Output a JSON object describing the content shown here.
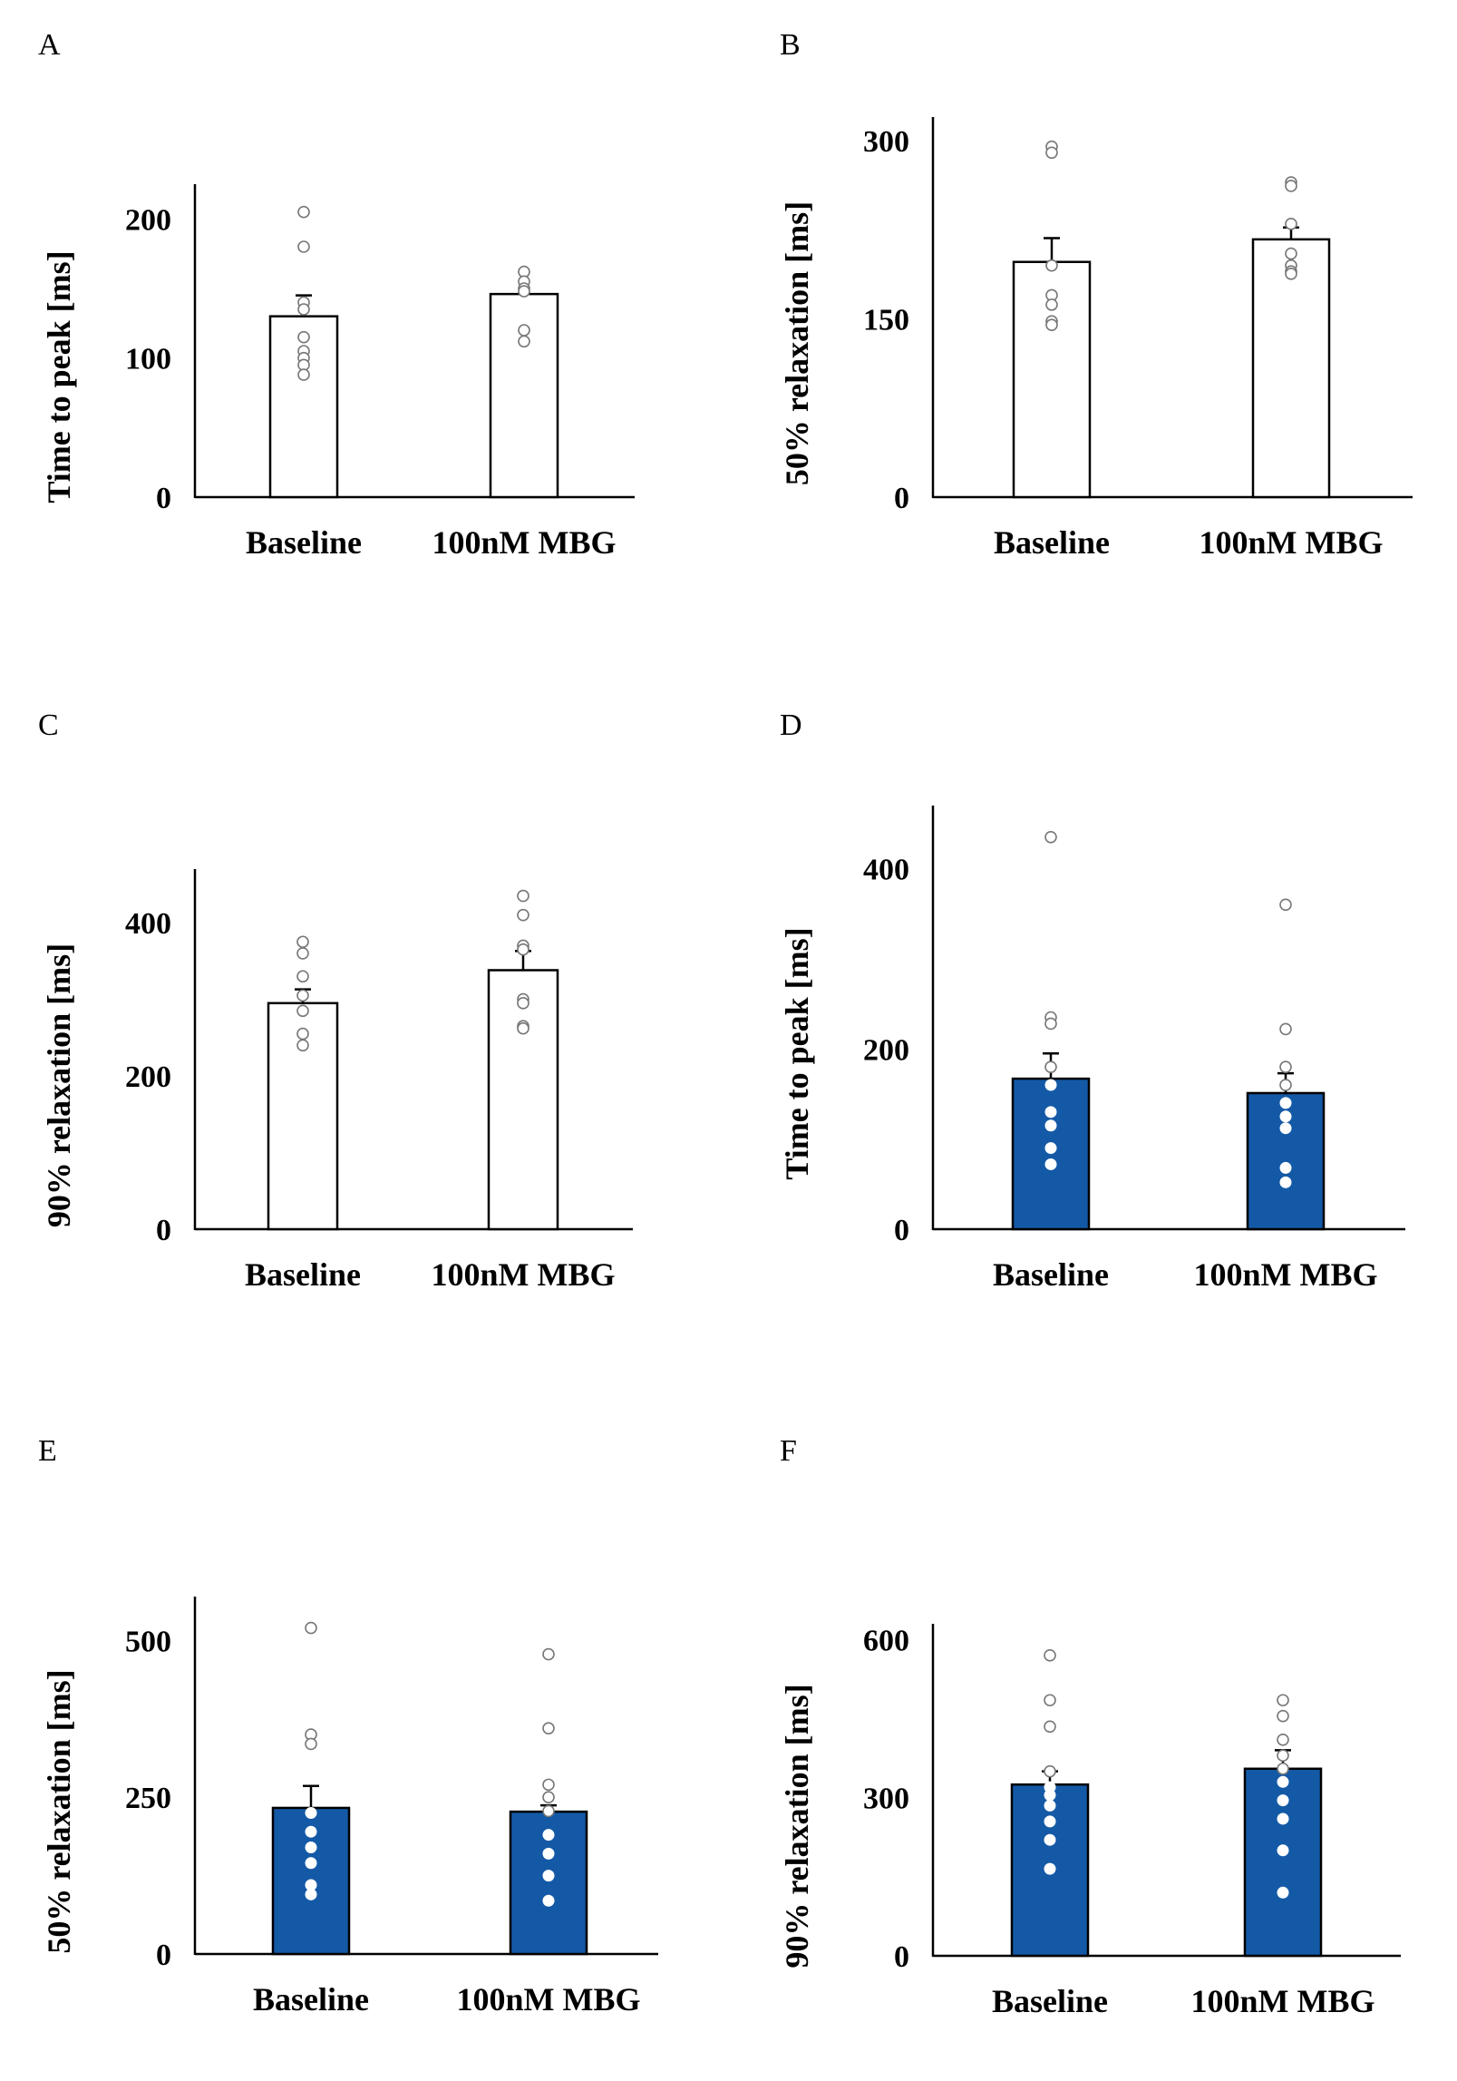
{
  "colors": {
    "white_bar": "#ffffff",
    "blue_bar": "#1459a6",
    "axis": "#000000"
  },
  "chart_data": [
    {
      "panel": "A",
      "type": "bar",
      "style": "white",
      "categories": [
        "Baseline",
        "100nM MBG"
      ],
      "values": [
        130,
        146
      ],
      "errors": [
        15,
        0
      ],
      "ylabel": "Time to peak [ms]",
      "ylim": [
        0,
        225
      ],
      "yticks": [
        0,
        100,
        200
      ],
      "points": [
        [
          205,
          180,
          140,
          135,
          115,
          105,
          100,
          95,
          88
        ],
        [
          162,
          155,
          150,
          148,
          120,
          112
        ]
      ]
    },
    {
      "panel": "B",
      "type": "bar",
      "style": "white",
      "categories": [
        "Baseline",
        "100nM MBG"
      ],
      "values": [
        198,
        217
      ],
      "errors": [
        20,
        10
      ],
      "ylabel": "50% relaxation [ms]",
      "ylim": [
        0,
        320
      ],
      "yticks": [
        0,
        150,
        300
      ],
      "points": [
        [
          295,
          290,
          195,
          170,
          162,
          148,
          145
        ],
        [
          265,
          262,
          230,
          205,
          195,
          190,
          188
        ]
      ]
    },
    {
      "panel": "C",
      "type": "bar",
      "style": "white",
      "categories": [
        "Baseline",
        "100nM MBG"
      ],
      "values": [
        295,
        338
      ],
      "errors": [
        18,
        25
      ],
      "ylabel": "90% relaxation [ms]",
      "ylim": [
        0,
        470
      ],
      "yticks": [
        0,
        200,
        400
      ],
      "points": [
        [
          375,
          360,
          330,
          305,
          285,
          255,
          240
        ],
        [
          435,
          410,
          370,
          365,
          300,
          295,
          265,
          262
        ]
      ]
    },
    {
      "panel": "D",
      "type": "bar",
      "style": "blue",
      "categories": [
        "Baseline",
        "100nM MBG"
      ],
      "values": [
        167,
        151
      ],
      "errors": [
        28,
        22
      ],
      "ylabel": "Time to peak [ms]",
      "ylim": [
        0,
        470
      ],
      "yticks": [
        0,
        200,
        400
      ],
      "points": [
        [
          435,
          235,
          228,
          180,
          160,
          130,
          115,
          90,
          72
        ],
        [
          360,
          222,
          180,
          160,
          140,
          125,
          112,
          68,
          52
        ]
      ]
    },
    {
      "panel": "E",
      "type": "bar",
      "style": "blue",
      "categories": [
        "Baseline",
        "100nM MBG"
      ],
      "values": [
        233,
        227
      ],
      "errors": [
        35,
        10
      ],
      "ylabel": "50% relaxation [ms]",
      "ylim": [
        0,
        570
      ],
      "yticks": [
        0,
        250,
        500
      ],
      "points": [
        [
          520,
          350,
          335,
          225,
          195,
          170,
          145,
          110,
          95
        ],
        [
          478,
          360,
          270,
          250,
          228,
          190,
          160,
          125,
          85
        ]
      ]
    },
    {
      "panel": "F",
      "type": "bar",
      "style": "blue",
      "categories": [
        "Baseline",
        "100nM MBG"
      ],
      "values": [
        325,
        355
      ],
      "errors": [
        25,
        35
      ],
      "ylabel": "90% relaxation [ms]",
      "ylim": [
        0,
        630
      ],
      "yticks": [
        0,
        300,
        600
      ],
      "points": [
        [
          570,
          485,
          435,
          350,
          320,
          305,
          285,
          255,
          220,
          165
        ],
        [
          485,
          455,
          410,
          380,
          355,
          330,
          295,
          260,
          200,
          120
        ]
      ]
    }
  ]
}
